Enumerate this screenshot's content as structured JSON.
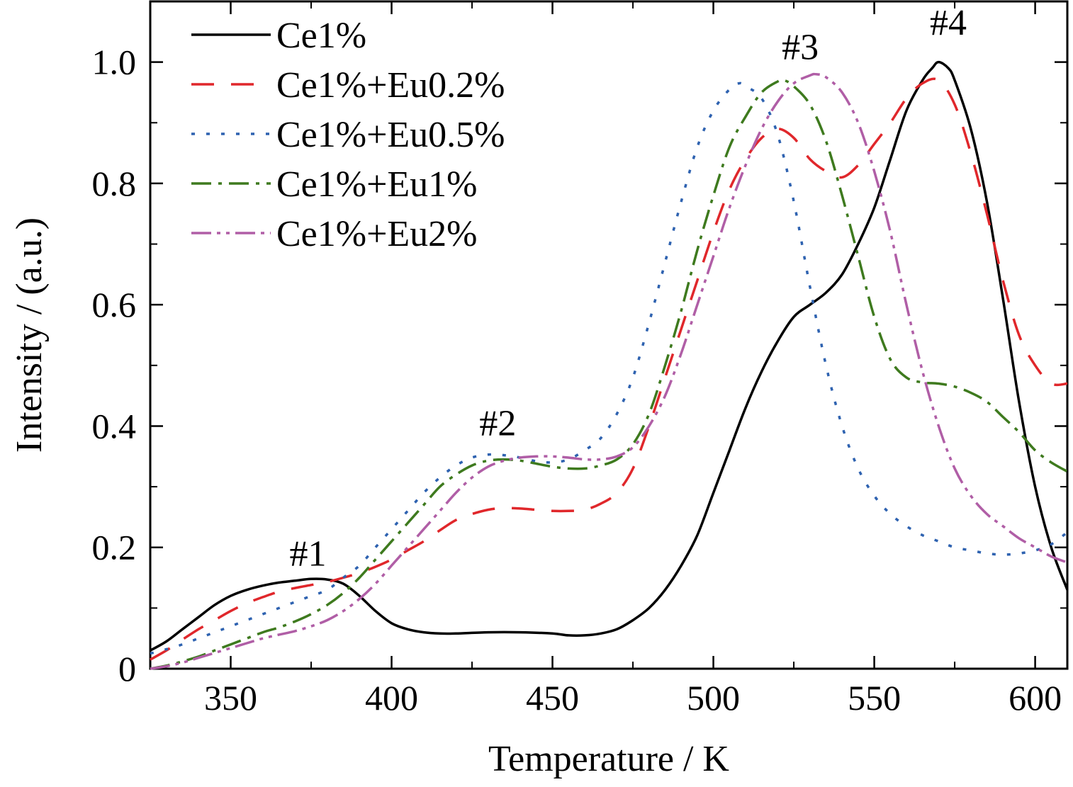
{
  "chart_data": {
    "type": "line",
    "xlabel": "Temperature / K",
    "ylabel": "Intensity / (a.u.)",
    "xlim": [
      325,
      610
    ],
    "ylim": [
      0,
      1.1
    ],
    "xticks": [
      350,
      400,
      450,
      500,
      550,
      600
    ],
    "xtick_labels": [
      "350",
      "400",
      "450",
      "500",
      "550",
      "600"
    ],
    "yticks": [
      0,
      0.2,
      0.4,
      0.6,
      0.8,
      1.0
    ],
    "ytick_labels": [
      "0",
      "0.2",
      "0.4",
      "0.6",
      "0.8",
      "1.0"
    ],
    "grid": false,
    "legend_position": "top-left",
    "annotations": [
      {
        "text": "#1",
        "x": 374,
        "y": 0.17
      },
      {
        "text": "#2",
        "x": 433,
        "y": 0.385
      },
      {
        "text": "#3",
        "x": 527,
        "y": 1.005
      },
      {
        "text": "#4",
        "x": 573,
        "y": 1.045
      }
    ],
    "series": [
      {
        "name": "Ce1%",
        "color": "#000000",
        "dash": "solid",
        "x": [
          325,
          330,
          335,
          340,
          345,
          350,
          355,
          360,
          365,
          370,
          375,
          380,
          385,
          390,
          395,
          400,
          405,
          410,
          415,
          420,
          430,
          440,
          450,
          455,
          460,
          465,
          470,
          475,
          480,
          485,
          490,
          495,
          500,
          505,
          510,
          515,
          520,
          525,
          530,
          535,
          540,
          545,
          550,
          555,
          560,
          565,
          568,
          570,
          573,
          575,
          580,
          585,
          590,
          595,
          600,
          605,
          610
        ],
        "y": [
          0.03,
          0.045,
          0.065,
          0.085,
          0.105,
          0.12,
          0.13,
          0.137,
          0.142,
          0.145,
          0.148,
          0.147,
          0.14,
          0.12,
          0.095,
          0.075,
          0.065,
          0.06,
          0.058,
          0.058,
          0.06,
          0.06,
          0.058,
          0.055,
          0.055,
          0.058,
          0.065,
          0.08,
          0.1,
          0.13,
          0.17,
          0.22,
          0.29,
          0.36,
          0.43,
          0.49,
          0.54,
          0.58,
          0.6,
          0.62,
          0.65,
          0.7,
          0.76,
          0.84,
          0.92,
          0.97,
          0.99,
          1.0,
          0.99,
          0.97,
          0.89,
          0.77,
          0.61,
          0.44,
          0.3,
          0.2,
          0.13
        ]
      },
      {
        "name": "Ce1%+Eu0.2%",
        "color": "#e0272b",
        "dash": "32,24",
        "x": [
          325,
          330,
          335,
          340,
          345,
          350,
          355,
          360,
          365,
          370,
          375,
          380,
          385,
          390,
          395,
          400,
          405,
          410,
          415,
          420,
          425,
          430,
          435,
          440,
          445,
          450,
          455,
          460,
          465,
          470,
          475,
          480,
          485,
          490,
          495,
          500,
          505,
          510,
          515,
          520,
          525,
          530,
          535,
          540,
          545,
          550,
          555,
          560,
          565,
          570,
          575,
          580,
          585,
          590,
          595,
          600,
          605,
          610
        ],
        "y": [
          0.015,
          0.03,
          0.048,
          0.065,
          0.08,
          0.095,
          0.108,
          0.118,
          0.127,
          0.133,
          0.138,
          0.143,
          0.15,
          0.158,
          0.168,
          0.18,
          0.195,
          0.21,
          0.228,
          0.245,
          0.255,
          0.262,
          0.265,
          0.264,
          0.262,
          0.26,
          0.26,
          0.262,
          0.272,
          0.29,
          0.33,
          0.4,
          0.48,
          0.56,
          0.64,
          0.72,
          0.79,
          0.84,
          0.875,
          0.89,
          0.875,
          0.84,
          0.82,
          0.81,
          0.83,
          0.865,
          0.9,
          0.94,
          0.965,
          0.97,
          0.93,
          0.85,
          0.75,
          0.64,
          0.55,
          0.5,
          0.47,
          0.47
        ]
      },
      {
        "name": "Ce1%+Eu0.5%",
        "color": "#2e62b0",
        "dash": "5,16",
        "x": [
          325,
          330,
          335,
          340,
          345,
          350,
          355,
          360,
          365,
          370,
          375,
          380,
          385,
          390,
          395,
          400,
          405,
          410,
          415,
          420,
          425,
          430,
          435,
          440,
          445,
          450,
          455,
          460,
          465,
          470,
          475,
          480,
          485,
          490,
          495,
          500,
          505,
          508,
          510,
          515,
          520,
          525,
          530,
          535,
          540,
          545,
          550,
          555,
          560,
          565,
          570,
          575,
          580,
          585,
          590,
          595,
          600,
          605,
          610
        ],
        "y": [
          0.025,
          0.032,
          0.04,
          0.05,
          0.06,
          0.07,
          0.08,
          0.09,
          0.1,
          0.11,
          0.12,
          0.13,
          0.15,
          0.17,
          0.2,
          0.23,
          0.26,
          0.29,
          0.315,
          0.335,
          0.348,
          0.353,
          0.352,
          0.348,
          0.342,
          0.34,
          0.345,
          0.36,
          0.38,
          0.42,
          0.48,
          0.57,
          0.67,
          0.77,
          0.86,
          0.92,
          0.955,
          0.965,
          0.96,
          0.94,
          0.88,
          0.77,
          0.63,
          0.5,
          0.4,
          0.33,
          0.285,
          0.255,
          0.235,
          0.22,
          0.21,
          0.2,
          0.195,
          0.19,
          0.188,
          0.19,
          0.195,
          0.205,
          0.225
        ]
      },
      {
        "name": "Ce1%+Eu1%",
        "color": "#3e7a1e",
        "dash": "28,10,5,10",
        "x": [
          325,
          330,
          335,
          340,
          345,
          350,
          355,
          360,
          365,
          370,
          375,
          380,
          385,
          390,
          395,
          400,
          405,
          410,
          415,
          420,
          425,
          430,
          435,
          440,
          445,
          450,
          455,
          460,
          465,
          470,
          475,
          480,
          485,
          490,
          495,
          500,
          505,
          510,
          515,
          520,
          522,
          525,
          530,
          535,
          540,
          545,
          550,
          555,
          560,
          565,
          570,
          575,
          580,
          585,
          590,
          595,
          600,
          605,
          610
        ],
        "y": [
          0.0,
          0.005,
          0.012,
          0.02,
          0.03,
          0.04,
          0.05,
          0.06,
          0.068,
          0.078,
          0.09,
          0.105,
          0.125,
          0.15,
          0.18,
          0.21,
          0.24,
          0.27,
          0.3,
          0.32,
          0.335,
          0.343,
          0.345,
          0.343,
          0.338,
          0.333,
          0.33,
          0.33,
          0.335,
          0.345,
          0.37,
          0.42,
          0.5,
          0.59,
          0.69,
          0.78,
          0.86,
          0.91,
          0.95,
          0.968,
          0.97,
          0.96,
          0.93,
          0.87,
          0.78,
          0.68,
          0.58,
          0.51,
          0.48,
          0.472,
          0.47,
          0.465,
          0.455,
          0.44,
          0.415,
          0.39,
          0.36,
          0.34,
          0.325
        ]
      },
      {
        "name": "Ce1%+Eu2%",
        "color": "#b05ea6",
        "dash": "28,8,5,8,5,8",
        "x": [
          325,
          330,
          335,
          340,
          345,
          350,
          355,
          360,
          365,
          370,
          375,
          380,
          385,
          390,
          395,
          400,
          405,
          410,
          415,
          420,
          425,
          430,
          435,
          440,
          445,
          450,
          455,
          460,
          465,
          470,
          475,
          480,
          485,
          490,
          495,
          500,
          505,
          510,
          515,
          520,
          525,
          530,
          532,
          535,
          540,
          545,
          550,
          555,
          560,
          565,
          570,
          575,
          580,
          585,
          590,
          595,
          600,
          605,
          610
        ],
        "y": [
          0.0,
          0.004,
          0.01,
          0.018,
          0.026,
          0.034,
          0.042,
          0.05,
          0.056,
          0.062,
          0.07,
          0.08,
          0.095,
          0.115,
          0.14,
          0.17,
          0.2,
          0.23,
          0.26,
          0.29,
          0.315,
          0.333,
          0.343,
          0.348,
          0.35,
          0.35,
          0.348,
          0.345,
          0.345,
          0.35,
          0.365,
          0.4,
          0.45,
          0.52,
          0.6,
          0.68,
          0.76,
          0.83,
          0.89,
          0.935,
          0.965,
          0.978,
          0.98,
          0.975,
          0.95,
          0.9,
          0.82,
          0.72,
          0.6,
          0.49,
          0.4,
          0.33,
          0.285,
          0.255,
          0.235,
          0.215,
          0.2,
          0.185,
          0.175
        ]
      }
    ]
  }
}
